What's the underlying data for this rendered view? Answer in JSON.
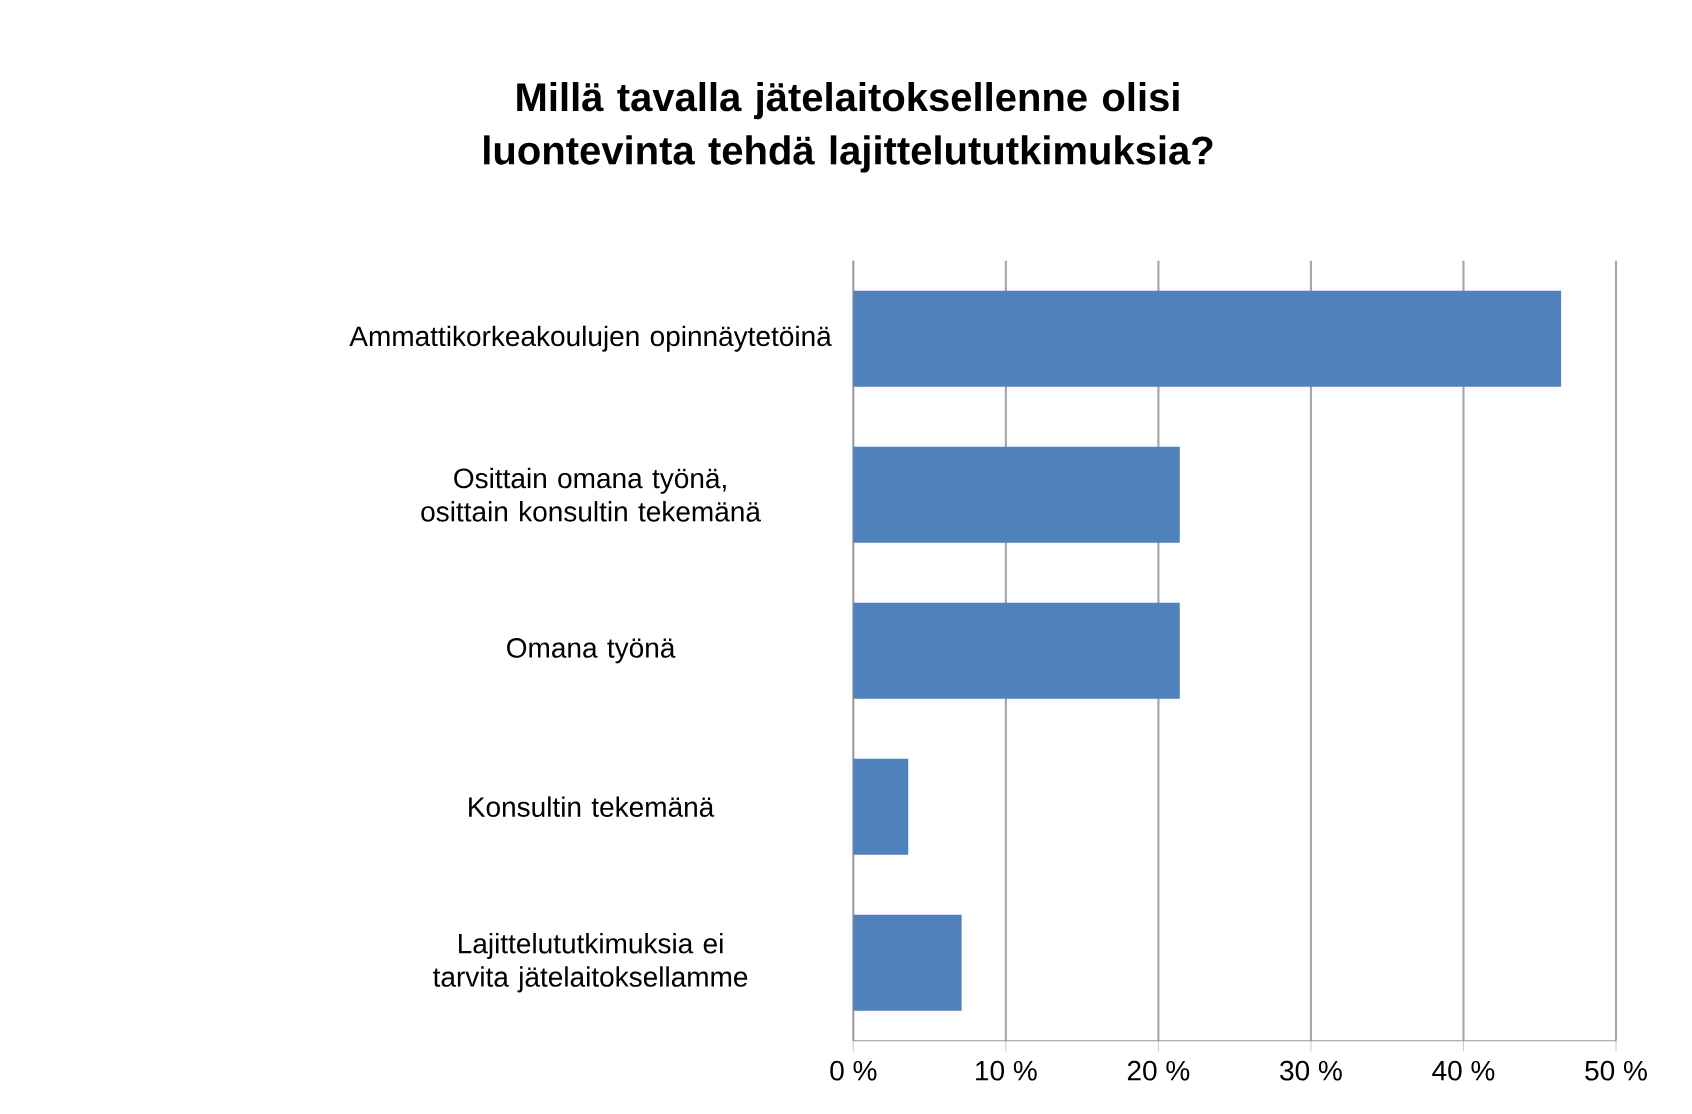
{
  "chart_data": {
    "type": "bar",
    "orientation": "horizontal",
    "title": "Millä tavalla jätelaitoksellenne olisi luontevinta tehdä lajittelututkimuksia?",
    "categories": [
      "Ammattikorkeakoulujen opinnäytetöinä",
      "Osittain omana työnä, osittain konsultin tekemänä",
      "Omana työnä",
      "Konsultin tekemänä",
      "Lajittelututkimuksia ei tarvita jätelaitoksellamme"
    ],
    "values": [
      46.4,
      21.4,
      21.4,
      3.6,
      7.1
    ],
    "color": "#4f81bd",
    "xlim": [
      0,
      50
    ],
    "xticks": [
      {
        "value": 0,
        "label": "0 %"
      },
      {
        "value": 10,
        "label": "10 %"
      },
      {
        "value": 20,
        "label": "20 %"
      },
      {
        "value": 30,
        "label": "30 %"
      },
      {
        "value": 40,
        "label": "40 %"
      },
      {
        "value": 50,
        "label": "50 %"
      }
    ],
    "grid": "x"
  }
}
